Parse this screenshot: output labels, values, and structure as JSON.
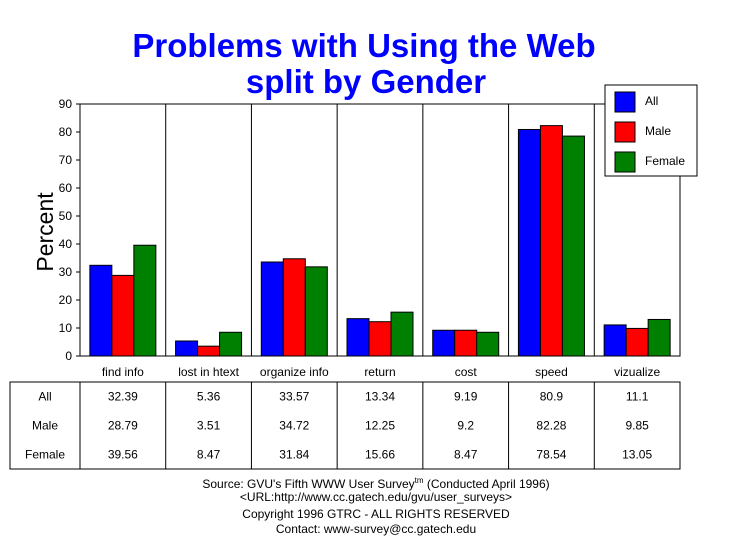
{
  "chart_data": {
    "type": "bar",
    "title": "Problems with Using the Web",
    "subtitle": "split by Gender",
    "ylabel": "Percent",
    "ylim": [
      0,
      90
    ],
    "yticks": [
      0,
      10,
      20,
      30,
      40,
      50,
      60,
      70,
      80,
      90
    ],
    "grid": "vertical category separators",
    "legend_position": "top-right",
    "categories": [
      "find info",
      "lost in htext",
      "organize info",
      "return",
      "cost",
      "speed",
      "vizualize"
    ],
    "series": [
      {
        "name": "All",
        "color": "#0000ff",
        "values": [
          32.39,
          5.36,
          33.57,
          13.34,
          9.19,
          80.9,
          11.1
        ]
      },
      {
        "name": "Male",
        "color": "#ff0000",
        "values": [
          28.79,
          3.51,
          34.72,
          12.25,
          9.2,
          82.28,
          9.85
        ]
      },
      {
        "name": "Female",
        "color": "#008000",
        "values": [
          39.56,
          8.47,
          31.84,
          15.66,
          8.47,
          78.54,
          13.05
        ]
      }
    ],
    "table": {
      "rows": [
        {
          "label": "All",
          "values": [
            "32.39",
            "5.36",
            "33.57",
            "13.34",
            "9.19",
            "80.9",
            "11.1"
          ]
        },
        {
          "label": "Male",
          "values": [
            "28.79",
            "3.51",
            "34.72",
            "12.25",
            "9.2",
            "82.28",
            "9.85"
          ]
        },
        {
          "label": "Female",
          "values": [
            "39.56",
            "8.47",
            "31.84",
            "15.66",
            "8.47",
            "78.54",
            "13.05"
          ]
        }
      ]
    }
  },
  "footer": {
    "source_prefix": "Source: GVU's Fifth WWW User Survey",
    "source_tm": "tm",
    "source_suffix": "  (Conducted April 1996)",
    "url": "<URL:http://www.cc.gatech.edu/gvu/user_surveys>",
    "copyright": "Copyright 1996 GTRC -  ALL RIGHTS RESERVED",
    "contact": "Contact: www-survey@cc.gatech.edu"
  }
}
